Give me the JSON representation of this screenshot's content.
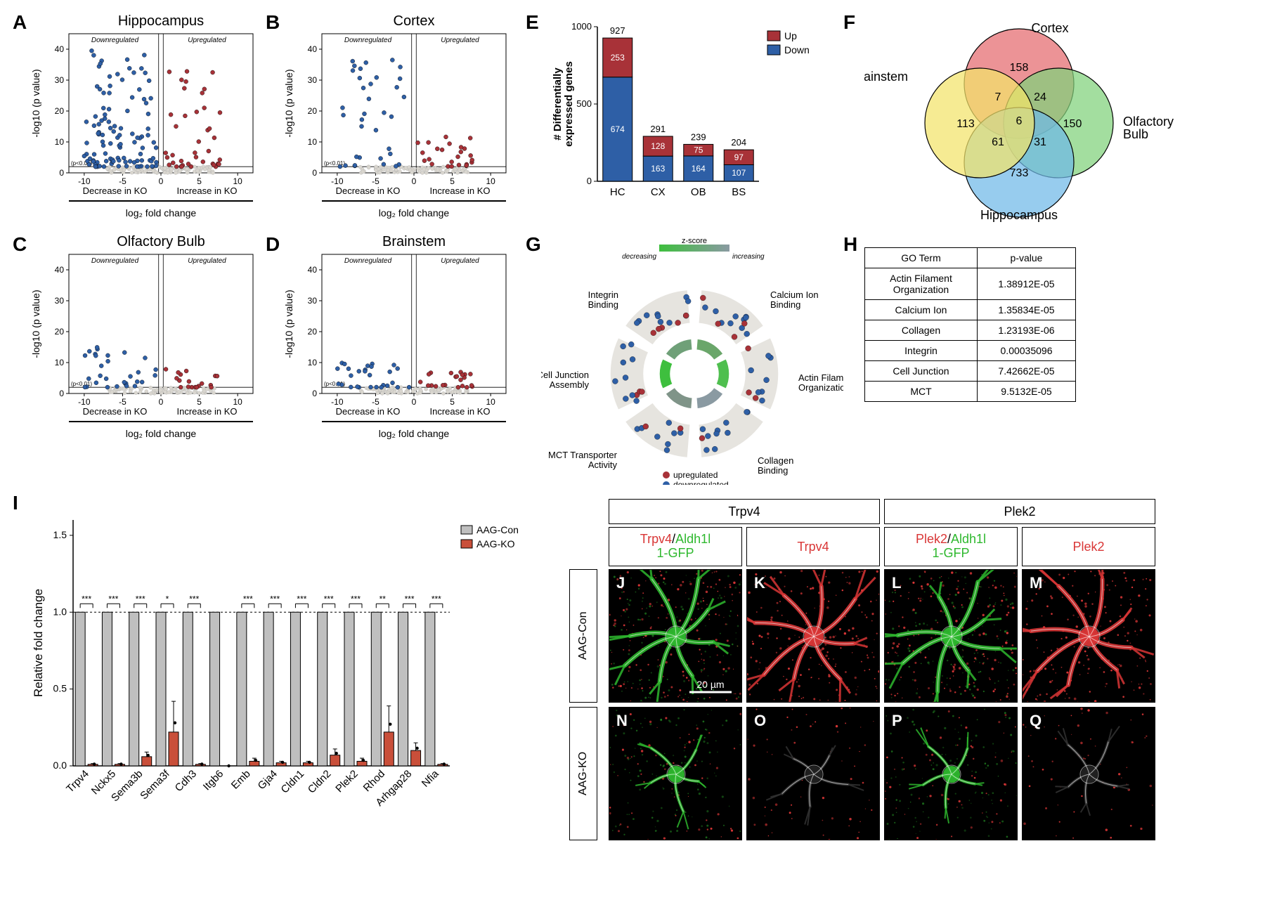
{
  "colors": {
    "down": "#2e5fa6",
    "up": "#a83238",
    "ns": "#d9d6cf",
    "grid": "#e0e0e0",
    "axis": "#000000",
    "bg": "#ffffff",
    "venn_red": "#e46a6e",
    "venn_yellow": "#f2e36a",
    "venn_green": "#7fd17a",
    "venn_blue": "#6fb8e8",
    "bar_con": "#bfbfbf",
    "bar_ko": "#c94f3a",
    "micro_green": "#2eb82e",
    "micro_red": "#d93636",
    "zscore_low": "#3ebf3e",
    "zscore_high": "#8a9aa2"
  },
  "panel_labels": {
    "A": "A",
    "B": "B",
    "C": "C",
    "D": "D",
    "E": "E",
    "F": "F",
    "G": "G",
    "H": "H",
    "I": "I",
    "J": "J",
    "K": "K",
    "L": "L",
    "M": "M",
    "N": "N",
    "O": "O",
    "P": "P",
    "Q": "Q"
  },
  "volcano": {
    "xlim": [
      -12,
      12
    ],
    "ylim": [
      0,
      45
    ],
    "xticks": [
      -10,
      -5,
      0,
      5,
      10
    ],
    "yticks": [
      0,
      10,
      20,
      30,
      40
    ],
    "xlabel": "log₂ fold change",
    "ylabel": "-log10 (p value)",
    "threshold_label": "(p<0.01)",
    "threshold_y": 2,
    "left_label": "Downregulated",
    "right_label": "Upregulated",
    "left_under": "Decrease in KO",
    "right_under": "Increase in KO",
    "panels": {
      "A": {
        "title": "Hippocampus",
        "n_down": 110,
        "n_up": 40,
        "n_ns": 120,
        "max_y_down": 42,
        "max_y_up": 38
      },
      "B": {
        "title": "Cortex",
        "n_down": 35,
        "n_up": 25,
        "n_ns": 100,
        "max_y_down": 37,
        "max_y_up": 12
      },
      "C": {
        "title": "Olfactory Bulb",
        "n_down": 30,
        "n_up": 18,
        "n_ns": 90,
        "max_y_down": 15,
        "max_y_up": 8
      },
      "D": {
        "title": "Brainstem",
        "n_down": 28,
        "n_up": 22,
        "n_ns": 90,
        "max_y_down": 10,
        "max_y_up": 8
      }
    }
  },
  "stacked": {
    "title": "",
    "ylabel": "# Differentially\nexpressed genes",
    "ylim": [
      0,
      1000
    ],
    "yticks": [
      0,
      500,
      1000
    ],
    "categories": [
      "HC",
      "CX",
      "OB",
      "BS"
    ],
    "totals": [
      927,
      291,
      239,
      204
    ],
    "up": [
      253,
      128,
      75,
      97
    ],
    "down": [
      674,
      163,
      164,
      107
    ],
    "legend": {
      "up": "Up",
      "down": "Down"
    }
  },
  "venn": {
    "labels": {
      "cortex": "Cortex",
      "brainstem": "Brainstem",
      "olfactory": "Olfactory\nBulb",
      "hippocampus": "Hippocampus"
    },
    "values": {
      "cortex_only": 158,
      "brainstem_only": 113,
      "olfactory_only": 150,
      "hippocampus_only": 733,
      "cx_bs": 7,
      "cx_ob": 24,
      "bs_hc": 61,
      "ob_hc": 31,
      "center": 6
    }
  },
  "circular": {
    "terms": [
      "Integrin\nBinding",
      "Calcium Ion\nBinding",
      "Actin Filament\nOrganization",
      "Collagen\nBinding",
      "MCT Transporter\nActivity",
      "Cell-Cell Junction\nAssembly"
    ],
    "zscore_label": "z-score",
    "zscore_low_label": "decreasing",
    "zscore_high_label": "increasing",
    "legend_up": "upregulated",
    "legend_down": "downregulated"
  },
  "go_table": {
    "headers": [
      "GO Term",
      "p-value"
    ],
    "rows": [
      [
        "Actin Filament\nOrganization",
        "1.38912E-05"
      ],
      [
        "Calcium Ion",
        "1.35834E-05"
      ],
      [
        "Collagen",
        "1.23193E-06"
      ],
      [
        "Integrin",
        "0.00035096"
      ],
      [
        "Cell Junction",
        "7.42662E-05"
      ],
      [
        "MCT",
        "9.5132E-05"
      ]
    ]
  },
  "qpcr": {
    "ylabel": "Relative fold change",
    "ylim": [
      0,
      1.6
    ],
    "yticks": [
      0.0,
      0.5,
      1.0,
      1.5
    ],
    "ref_line": 1.0,
    "legend": {
      "con": "AAG-Con",
      "ko": "AAG-KO"
    },
    "genes": [
      "Trpv4",
      "Nckx5",
      "Sema3b",
      "Sema3f",
      "Cdh3",
      "Itgb6",
      "Emb",
      "Gja4",
      "Cldn1",
      "Cldn2",
      "Plek2",
      "Rhod",
      "Arhgap28",
      "Nfia"
    ],
    "con": [
      1,
      1,
      1,
      1,
      1,
      1,
      1,
      1,
      1,
      1,
      1,
      1,
      1,
      1
    ],
    "ko": [
      0.01,
      0.01,
      0.06,
      0.22,
      0.01,
      0.0,
      0.03,
      0.02,
      0.02,
      0.07,
      0.03,
      0.22,
      0.1,
      0.01
    ],
    "ko_err": [
      0.005,
      0.005,
      0.03,
      0.2,
      0.005,
      0.0,
      0.02,
      0.01,
      0.01,
      0.04,
      0.02,
      0.17,
      0.05,
      0.005
    ],
    "sig": [
      "***",
      "***",
      "***",
      "*",
      "***",
      "",
      "***",
      "***",
      "***",
      "***",
      "***",
      "**",
      "***",
      "***"
    ]
  },
  "micro": {
    "col_groups": [
      "Trpv4",
      "Plek2"
    ],
    "subcols": [
      {
        "main": "Trpv4",
        "sub": "Aldh1l\n1-GFP",
        "colors": [
          "#d93636",
          "#2eb82e"
        ]
      },
      {
        "main": "Trpv4",
        "sub": "",
        "colors": [
          "#d93636"
        ]
      },
      {
        "main": "Plek2",
        "sub": "Aldh1l\n1-GFP",
        "colors": [
          "#d93636",
          "#2eb82e"
        ]
      },
      {
        "main": "Plek2",
        "sub": "",
        "colors": [
          "#d93636"
        ]
      }
    ],
    "rows": [
      "AAG-Con",
      "AAG-KO"
    ],
    "scale_bar": "20 µm",
    "cell_labels": [
      [
        "J",
        "K",
        "L",
        "M"
      ],
      [
        "N",
        "O",
        "P",
        "Q"
      ]
    ]
  }
}
